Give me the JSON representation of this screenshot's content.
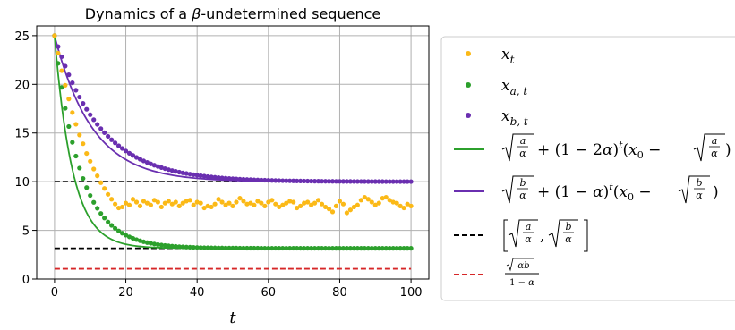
{
  "chart_data": {
    "type": "line",
    "title_prefix": "Dynamics of a ",
    "title_symbol": "β",
    "title_suffix": "-undetermined sequence",
    "xlabel": "t",
    "ylabel": "",
    "xlim": [
      -5,
      105
    ],
    "ylim": [
      0,
      26
    ],
    "xticks": [
      0,
      20,
      40,
      60,
      80,
      100
    ],
    "yticks": [
      0,
      5,
      10,
      15,
      20,
      25
    ],
    "grid": true,
    "legend_position": "right",
    "x0": 25,
    "x_a_limit": 3.16,
    "x_b_limit": 10.0,
    "hline_red": 1.05,
    "x_t_values": [
      25,
      23.2,
      21.4,
      19.9,
      18.5,
      17.1,
      15.9,
      14.8,
      13.9,
      12.9,
      12.1,
      11.3,
      10.6,
      9.9,
      9.3,
      8.7,
      8.2,
      7.7,
      7.3,
      7.4,
      7.8,
      7.6,
      8.2,
      7.9,
      7.5,
      8.0,
      7.8,
      7.6,
      8.1,
      7.9,
      7.4,
      7.8,
      8.0,
      7.7,
      7.9,
      7.5,
      7.8,
      8.0,
      8.1,
      7.6,
      7.9,
      7.8,
      7.3,
      7.5,
      7.4,
      7.7,
      8.2,
      7.9,
      7.6,
      7.8,
      7.5,
      7.9,
      8.3,
      8.0,
      7.7,
      7.8,
      7.6,
      8.0,
      7.8,
      7.5,
      7.9,
      8.1,
      7.7,
      7.4,
      7.6,
      7.8,
      8.0,
      7.9,
      7.3,
      7.5,
      7.8,
      7.9,
      7.6,
      7.8,
      8.1,
      7.7,
      7.4,
      7.2,
      6.9,
      7.5,
      8.0,
      7.7,
      6.8,
      7.1,
      7.4,
      7.6,
      8.1,
      8.4,
      8.2,
      7.9,
      7.6,
      7.8,
      8.3,
      8.4,
      8.1,
      7.9,
      7.8,
      7.5,
      7.3,
      7.7,
      7.5
    ],
    "series": [
      {
        "name": "x_t",
        "kind": "scatter",
        "color": "#fbb917"
      },
      {
        "name": "x_{a,t}",
        "kind": "scatter",
        "color": "#2ca02c"
      },
      {
        "name": "x_{b,t}",
        "kind": "scatter",
        "color": "#6a2fb0"
      },
      {
        "name": "√(a/α) + (1 − 2α)^t (x₀ − √(a/α))",
        "kind": "line",
        "color": "#2ca02c"
      },
      {
        "name": "√(b/α) + (1 − α)^t (x₀ − √(b/α))",
        "kind": "line",
        "color": "#6a2fb0"
      },
      {
        "name": "[√(a/α), √(b/α)]",
        "kind": "dashed",
        "color": "#000000"
      },
      {
        "name": "√(αb) / (1 − α)",
        "kind": "dashed",
        "color": "#d62728"
      }
    ]
  }
}
